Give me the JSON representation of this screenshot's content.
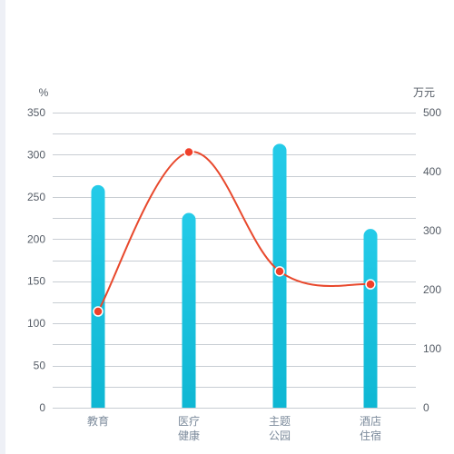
{
  "chart_data": {
    "type": "bar",
    "categories": [
      [
        "教育"
      ],
      [
        "医疗",
        "健康"
      ],
      [
        "主题",
        "公园"
      ],
      [
        "酒店",
        "住宿"
      ]
    ],
    "bar_series": {
      "axis": "left",
      "values": [
        264,
        231,
        313,
        212
      ]
    },
    "line_series": {
      "axis": "right",
      "values": [
        163,
        433,
        231,
        209
      ]
    },
    "y_left": {
      "unit": "%",
      "min": 0,
      "max": 350,
      "ticks": [
        0,
        50,
        100,
        150,
        200,
        250,
        300,
        350
      ]
    },
    "y_right": {
      "unit": "万元",
      "min": 0,
      "max": 500,
      "ticks": [
        0,
        100,
        200,
        300,
        400,
        500
      ]
    },
    "grid": true,
    "colors": {
      "bar_top": "#24cbe8",
      "bar_bottom": "#0fb7d3",
      "line": "#e8482c",
      "point_fill": "#f0402a",
      "point_stroke": "#ffffff",
      "grid": "#c8cdd3"
    }
  }
}
